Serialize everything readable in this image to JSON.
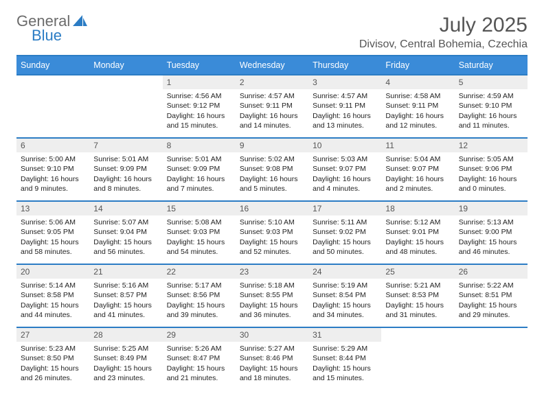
{
  "brand": {
    "part1": "General",
    "part2": "Blue"
  },
  "logo_colors": {
    "general": "#6b6b6b",
    "blue": "#2b7cc4",
    "sail": "#2b7cc4"
  },
  "title": "July 2025",
  "location": "Divisov, Central Bohemia, Czechia",
  "header_bg": "#3a8bd8",
  "header_fg": "#ffffff",
  "border_color": "#2b7cc4",
  "daynum_bg": "#eeeeee",
  "text_color": "#222222",
  "days": [
    "Sunday",
    "Monday",
    "Tuesday",
    "Wednesday",
    "Thursday",
    "Friday",
    "Saturday"
  ],
  "weeks": [
    [
      null,
      null,
      {
        "n": "1",
        "l1": "Sunrise: 4:56 AM",
        "l2": "Sunset: 9:12 PM",
        "l3": "Daylight: 16 hours",
        "l4": "and 15 minutes."
      },
      {
        "n": "2",
        "l1": "Sunrise: 4:57 AM",
        "l2": "Sunset: 9:11 PM",
        "l3": "Daylight: 16 hours",
        "l4": "and 14 minutes."
      },
      {
        "n": "3",
        "l1": "Sunrise: 4:57 AM",
        "l2": "Sunset: 9:11 PM",
        "l3": "Daylight: 16 hours",
        "l4": "and 13 minutes."
      },
      {
        "n": "4",
        "l1": "Sunrise: 4:58 AM",
        "l2": "Sunset: 9:11 PM",
        "l3": "Daylight: 16 hours",
        "l4": "and 12 minutes."
      },
      {
        "n": "5",
        "l1": "Sunrise: 4:59 AM",
        "l2": "Sunset: 9:10 PM",
        "l3": "Daylight: 16 hours",
        "l4": "and 11 minutes."
      }
    ],
    [
      {
        "n": "6",
        "l1": "Sunrise: 5:00 AM",
        "l2": "Sunset: 9:10 PM",
        "l3": "Daylight: 16 hours",
        "l4": "and 9 minutes."
      },
      {
        "n": "7",
        "l1": "Sunrise: 5:01 AM",
        "l2": "Sunset: 9:09 PM",
        "l3": "Daylight: 16 hours",
        "l4": "and 8 minutes."
      },
      {
        "n": "8",
        "l1": "Sunrise: 5:01 AM",
        "l2": "Sunset: 9:09 PM",
        "l3": "Daylight: 16 hours",
        "l4": "and 7 minutes."
      },
      {
        "n": "9",
        "l1": "Sunrise: 5:02 AM",
        "l2": "Sunset: 9:08 PM",
        "l3": "Daylight: 16 hours",
        "l4": "and 5 minutes."
      },
      {
        "n": "10",
        "l1": "Sunrise: 5:03 AM",
        "l2": "Sunset: 9:07 PM",
        "l3": "Daylight: 16 hours",
        "l4": "and 4 minutes."
      },
      {
        "n": "11",
        "l1": "Sunrise: 5:04 AM",
        "l2": "Sunset: 9:07 PM",
        "l3": "Daylight: 16 hours",
        "l4": "and 2 minutes."
      },
      {
        "n": "12",
        "l1": "Sunrise: 5:05 AM",
        "l2": "Sunset: 9:06 PM",
        "l3": "Daylight: 16 hours",
        "l4": "and 0 minutes."
      }
    ],
    [
      {
        "n": "13",
        "l1": "Sunrise: 5:06 AM",
        "l2": "Sunset: 9:05 PM",
        "l3": "Daylight: 15 hours",
        "l4": "and 58 minutes."
      },
      {
        "n": "14",
        "l1": "Sunrise: 5:07 AM",
        "l2": "Sunset: 9:04 PM",
        "l3": "Daylight: 15 hours",
        "l4": "and 56 minutes."
      },
      {
        "n": "15",
        "l1": "Sunrise: 5:08 AM",
        "l2": "Sunset: 9:03 PM",
        "l3": "Daylight: 15 hours",
        "l4": "and 54 minutes."
      },
      {
        "n": "16",
        "l1": "Sunrise: 5:10 AM",
        "l2": "Sunset: 9:03 PM",
        "l3": "Daylight: 15 hours",
        "l4": "and 52 minutes."
      },
      {
        "n": "17",
        "l1": "Sunrise: 5:11 AM",
        "l2": "Sunset: 9:02 PM",
        "l3": "Daylight: 15 hours",
        "l4": "and 50 minutes."
      },
      {
        "n": "18",
        "l1": "Sunrise: 5:12 AM",
        "l2": "Sunset: 9:01 PM",
        "l3": "Daylight: 15 hours",
        "l4": "and 48 minutes."
      },
      {
        "n": "19",
        "l1": "Sunrise: 5:13 AM",
        "l2": "Sunset: 9:00 PM",
        "l3": "Daylight: 15 hours",
        "l4": "and 46 minutes."
      }
    ],
    [
      {
        "n": "20",
        "l1": "Sunrise: 5:14 AM",
        "l2": "Sunset: 8:58 PM",
        "l3": "Daylight: 15 hours",
        "l4": "and 44 minutes."
      },
      {
        "n": "21",
        "l1": "Sunrise: 5:16 AM",
        "l2": "Sunset: 8:57 PM",
        "l3": "Daylight: 15 hours",
        "l4": "and 41 minutes."
      },
      {
        "n": "22",
        "l1": "Sunrise: 5:17 AM",
        "l2": "Sunset: 8:56 PM",
        "l3": "Daylight: 15 hours",
        "l4": "and 39 minutes."
      },
      {
        "n": "23",
        "l1": "Sunrise: 5:18 AM",
        "l2": "Sunset: 8:55 PM",
        "l3": "Daylight: 15 hours",
        "l4": "and 36 minutes."
      },
      {
        "n": "24",
        "l1": "Sunrise: 5:19 AM",
        "l2": "Sunset: 8:54 PM",
        "l3": "Daylight: 15 hours",
        "l4": "and 34 minutes."
      },
      {
        "n": "25",
        "l1": "Sunrise: 5:21 AM",
        "l2": "Sunset: 8:53 PM",
        "l3": "Daylight: 15 hours",
        "l4": "and 31 minutes."
      },
      {
        "n": "26",
        "l1": "Sunrise: 5:22 AM",
        "l2": "Sunset: 8:51 PM",
        "l3": "Daylight: 15 hours",
        "l4": "and 29 minutes."
      }
    ],
    [
      {
        "n": "27",
        "l1": "Sunrise: 5:23 AM",
        "l2": "Sunset: 8:50 PM",
        "l3": "Daylight: 15 hours",
        "l4": "and 26 minutes."
      },
      {
        "n": "28",
        "l1": "Sunrise: 5:25 AM",
        "l2": "Sunset: 8:49 PM",
        "l3": "Daylight: 15 hours",
        "l4": "and 23 minutes."
      },
      {
        "n": "29",
        "l1": "Sunrise: 5:26 AM",
        "l2": "Sunset: 8:47 PM",
        "l3": "Daylight: 15 hours",
        "l4": "and 21 minutes."
      },
      {
        "n": "30",
        "l1": "Sunrise: 5:27 AM",
        "l2": "Sunset: 8:46 PM",
        "l3": "Daylight: 15 hours",
        "l4": "and 18 minutes."
      },
      {
        "n": "31",
        "l1": "Sunrise: 5:29 AM",
        "l2": "Sunset: 8:44 PM",
        "l3": "Daylight: 15 hours",
        "l4": "and 15 minutes."
      },
      null,
      null
    ]
  ]
}
